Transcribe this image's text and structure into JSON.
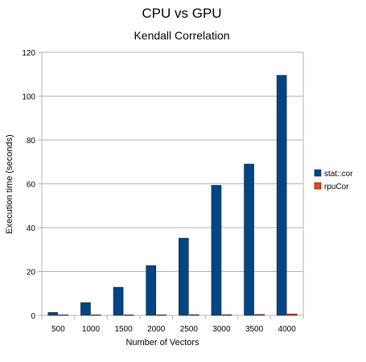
{
  "chart_data": {
    "type": "bar",
    "title": "CPU vs GPU",
    "subtitle": "Kendall Correlation",
    "xlabel": "Number of Vectors",
    "ylabel": "Execution time (seconds)",
    "categories": [
      "500",
      "1000",
      "1500",
      "2000",
      "2500",
      "3000",
      "3500",
      "4000"
    ],
    "ylim": [
      0,
      120
    ],
    "yticks": [
      0,
      20,
      40,
      60,
      80,
      100,
      120
    ],
    "grid": true,
    "legend_position": "right",
    "series": [
      {
        "name": "stat::cor",
        "color": "#004586",
        "values": [
          1.3,
          5.8,
          12.8,
          22.7,
          35.2,
          59.3,
          69.0,
          109.5
        ]
      },
      {
        "name": "rpuCor",
        "color": "#ff420e",
        "values": [
          0.2,
          0.2,
          0.2,
          0.2,
          0.3,
          0.3,
          0.4,
          0.6
        ]
      }
    ]
  }
}
